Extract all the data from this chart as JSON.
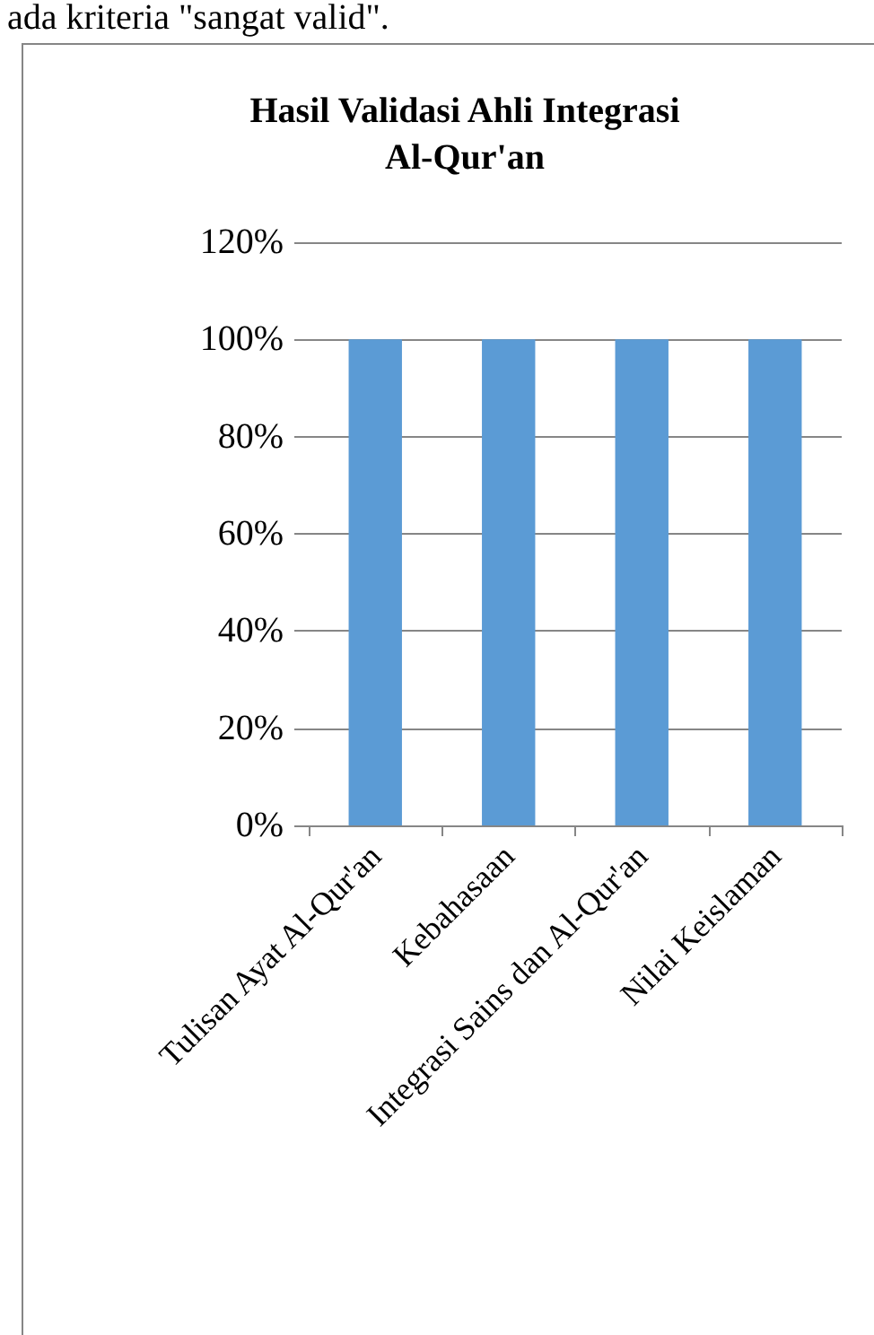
{
  "chart_data": {
    "type": "bar",
    "title": "Hasil Validasi Ahli Integrasi\nAl-Qur'an",
    "annotations": [
      "ada kriteria \"sangat valid\"."
    ],
    "categories": [
      "Tulisan Ayat Al-Qur'an",
      "Kebahasaan",
      "Integrasi Sains dan Al-Qur'an",
      "Nilai Keislaman"
    ],
    "values": [
      100,
      100,
      100,
      100
    ],
    "color": "#5b9bd5",
    "ylim": [
      0,
      120
    ],
    "yticks": [
      {
        "value": 0,
        "label": "0%"
      },
      {
        "value": 20,
        "label": "20%"
      },
      {
        "value": 40,
        "label": "40%"
      },
      {
        "value": 60,
        "label": "60%"
      },
      {
        "value": 80,
        "label": "80%"
      },
      {
        "value": 100,
        "label": "100%"
      },
      {
        "value": 120,
        "label": "120%"
      }
    ],
    "grid": true
  }
}
